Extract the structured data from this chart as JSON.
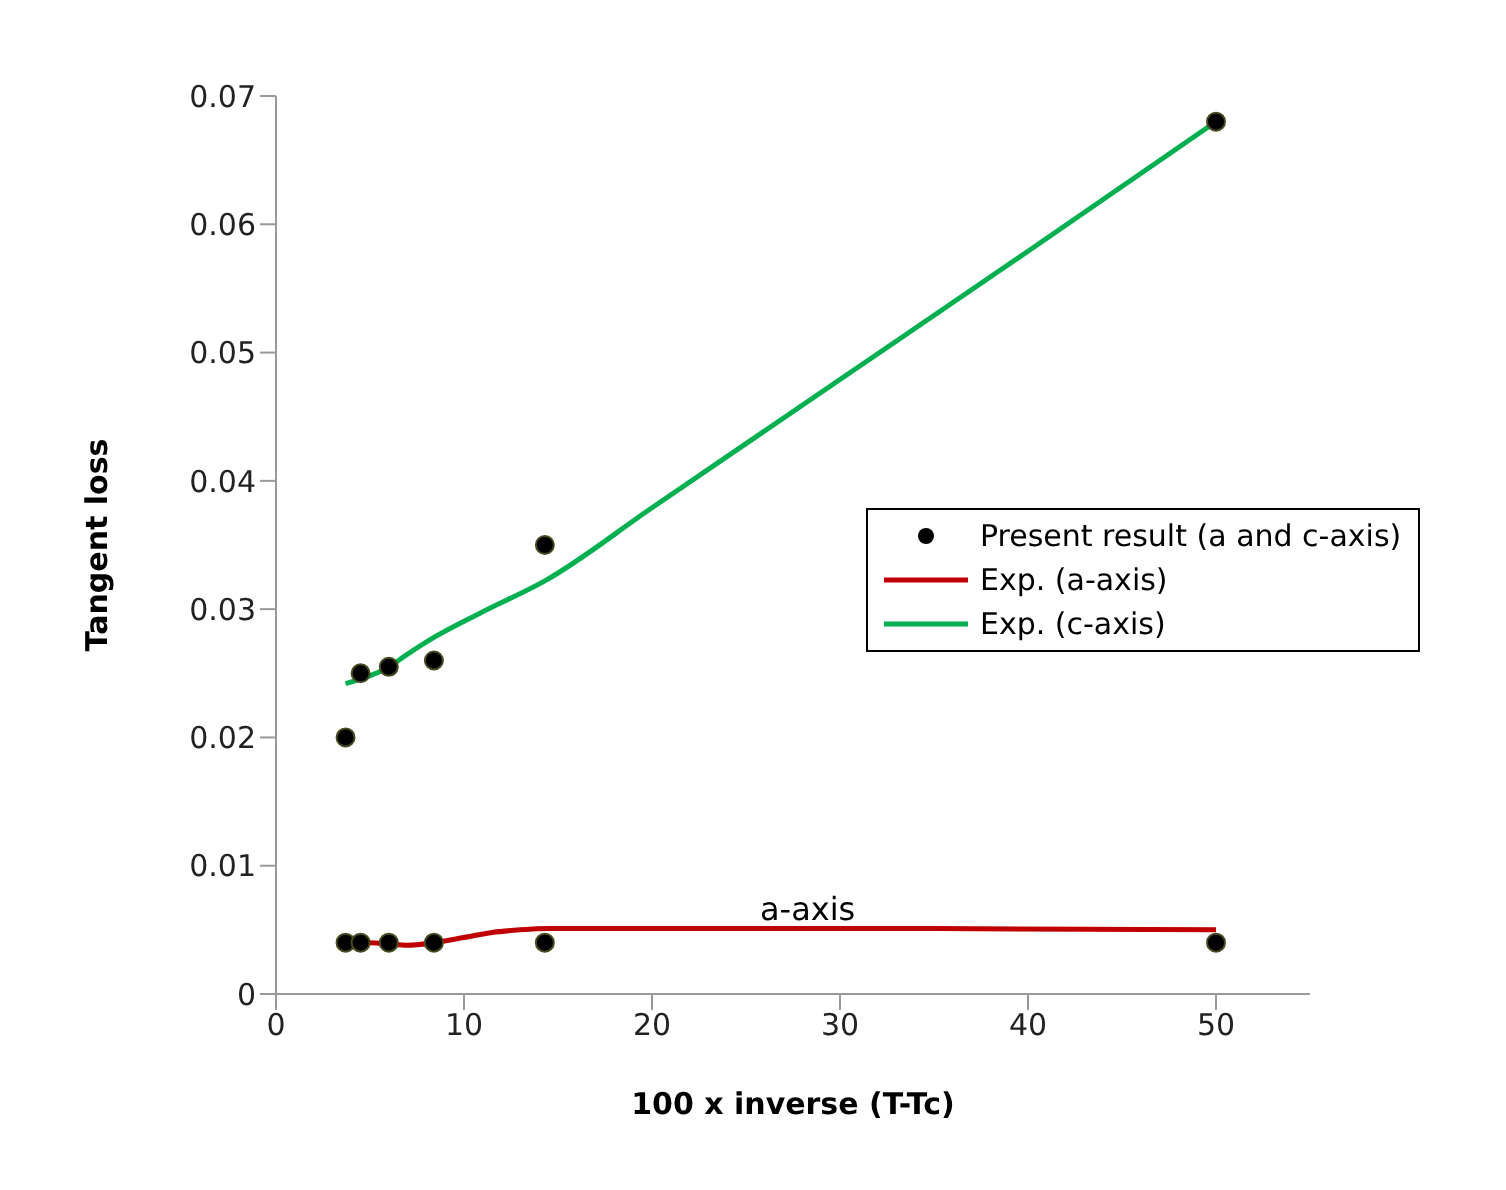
{
  "chart_data": {
    "type": "line",
    "xlabel": "100 x inverse (T-Tc)",
    "ylabel": "Tangent loss",
    "xlim": [
      0,
      55
    ],
    "xticks": [
      0,
      10,
      20,
      30,
      40,
      50
    ],
    "ylim": [
      0,
      0.07
    ],
    "yticks": [
      0,
      0.01,
      0.02,
      0.03,
      0.04,
      0.05,
      0.06,
      0.07
    ],
    "grid": false,
    "legend": "right",
    "annotations": [
      "a-axis"
    ],
    "series": [
      {
        "name": "Present result (a and c-axis)",
        "type": "scatter",
        "marker": "circle",
        "color": "#000000",
        "x": [
          3.7,
          4.5,
          6,
          8.4,
          14.3,
          50,
          3.7,
          4.5,
          6,
          8.4,
          14.3,
          50
        ],
        "values": [
          0.02,
          0.025,
          0.0255,
          0.026,
          0.035,
          0.068,
          0.004,
          0.004,
          0.004,
          0.004,
          0.004,
          0.004
        ]
      },
      {
        "name": "Exp. (a-axis)",
        "marker": "none",
        "line_style": "solid",
        "color": "#c00000",
        "x": [
          3.7,
          5,
          6,
          7,
          8.4,
          10,
          11.5,
          13,
          14.5,
          20,
          35,
          50
        ],
        "values": [
          0.004,
          0.004,
          0.0039,
          0.0038,
          0.004,
          0.0044,
          0.0048,
          0.005,
          0.0051,
          0.0051,
          0.0051,
          0.005
        ]
      },
      {
        "name": "Exp. (c-axis)",
        "marker": "none",
        "line_style": "solid",
        "color": "#00b050",
        "x": [
          3.7,
          6,
          7,
          8.4,
          11,
          14.3,
          20,
          30,
          40,
          50
        ],
        "values": [
          0.0242,
          0.0255,
          0.0265,
          0.0278,
          0.0298,
          0.0322,
          0.0379,
          0.0479,
          0.0579,
          0.068
        ]
      }
    ]
  }
}
